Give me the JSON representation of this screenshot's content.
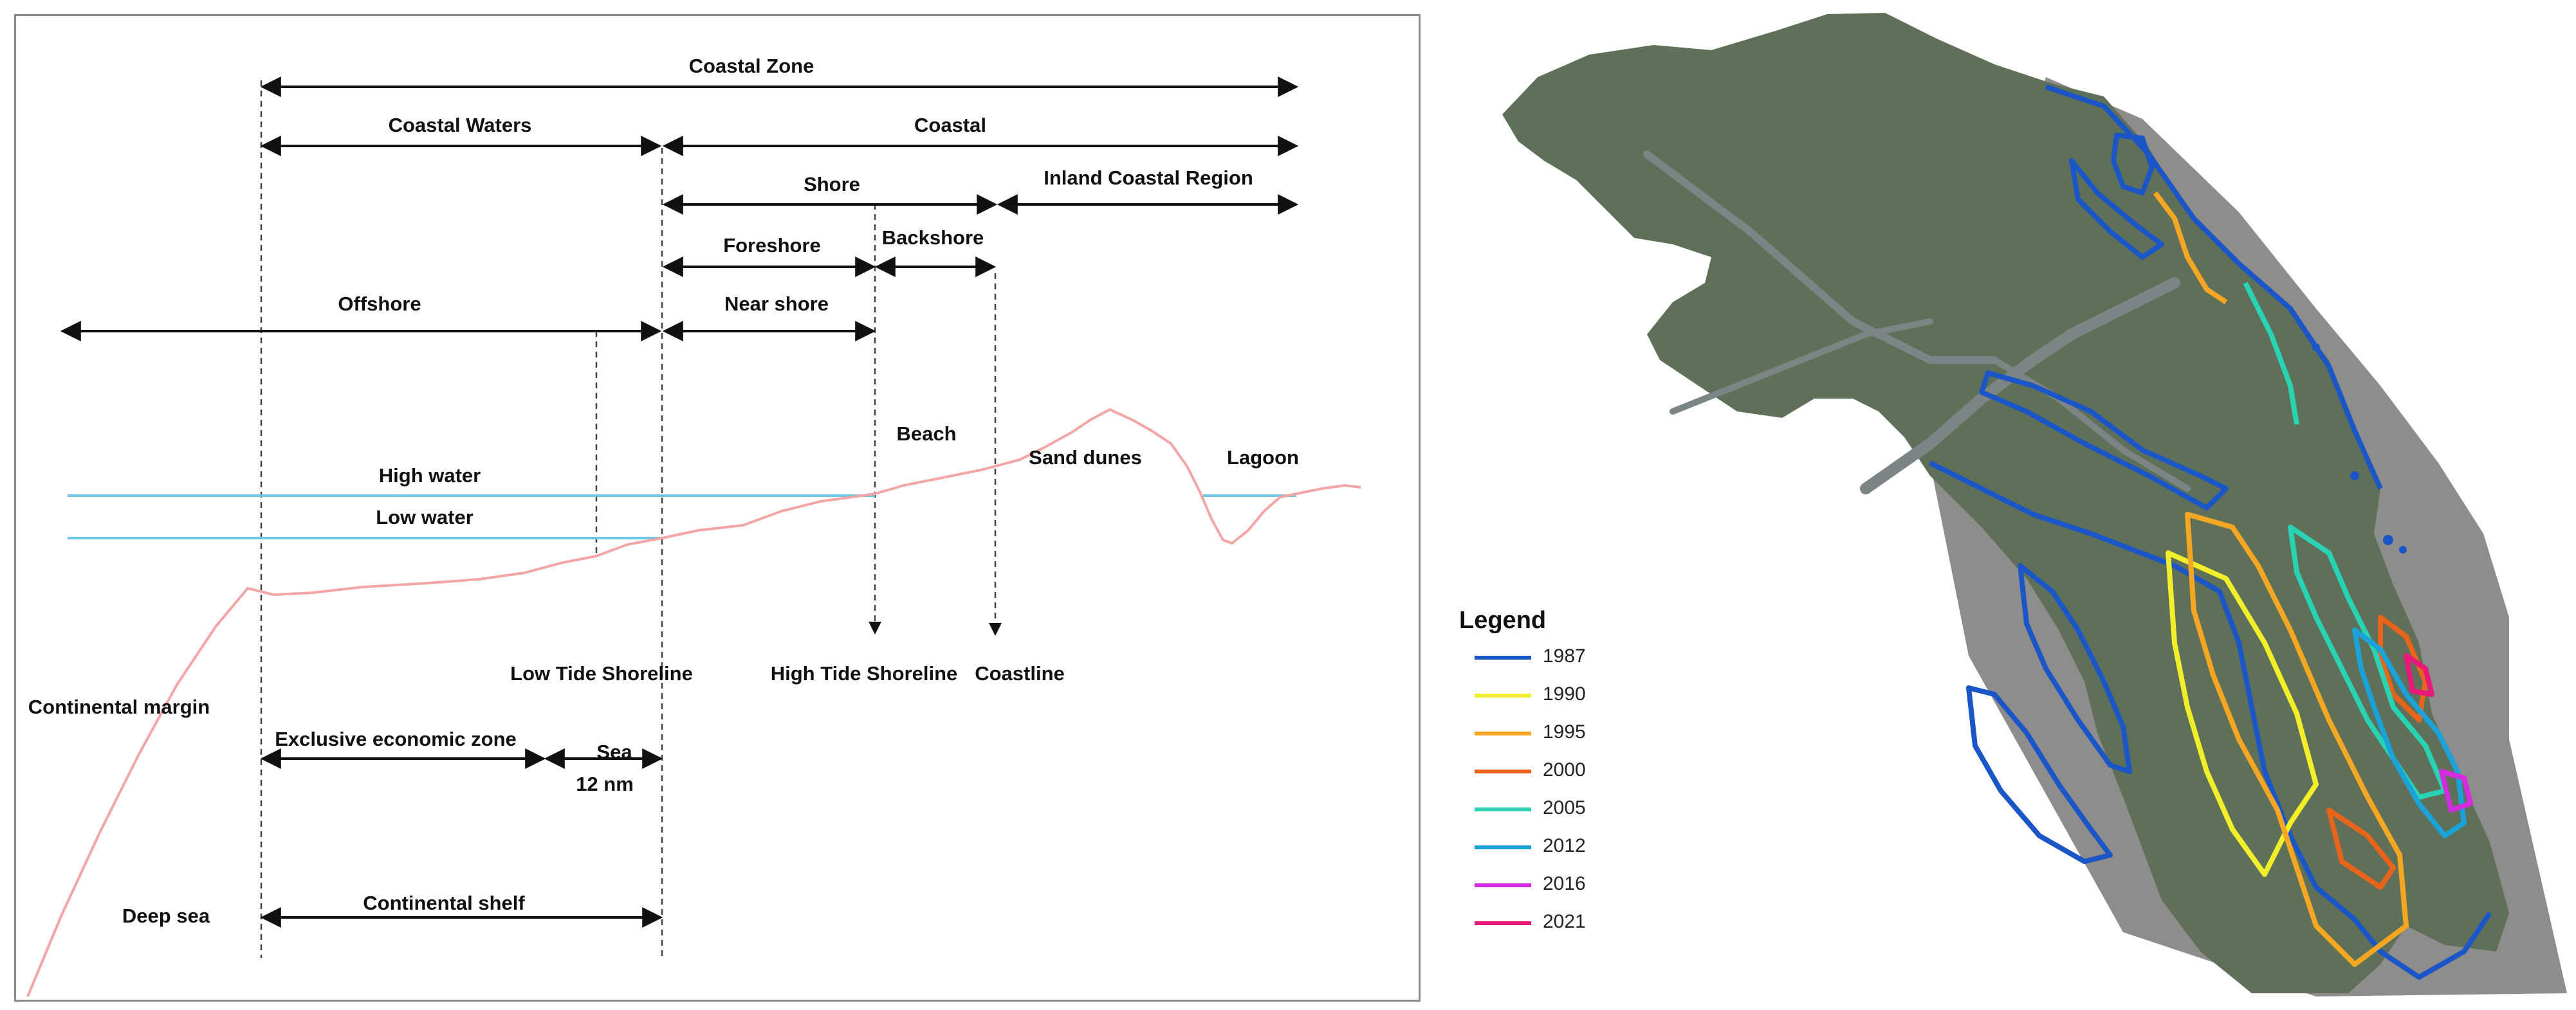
{
  "diagram": {
    "labels": {
      "coastal_zone": "Coastal Zone",
      "coastal_waters": "Coastal Waters",
      "coastal": "Coastal",
      "shore": "Shore",
      "inland_coastal_region": "Inland Coastal Region",
      "foreshore": "Foreshore",
      "backshore": "Backshore",
      "offshore": "Offshore",
      "near_shore": "Near shore",
      "beach": "Beach",
      "sand_dunes": "Sand dunes",
      "lagoon": "Lagoon",
      "high_water": "High water",
      "low_water": "Low water",
      "low_tide_shoreline": "Low Tide Shoreline",
      "high_tide_shoreline": "High Tide Shoreline",
      "coastline": "Coastline",
      "continental_margin": "Continental margin",
      "exclusive_economic_zone": "Exclusive economic zone",
      "sea": "Sea",
      "twelve_nm": "12 nm",
      "deep_sea": "Deep sea",
      "continental_shelf": "Continental shelf"
    },
    "colors": {
      "profile": "#f4a5a5",
      "water_line": "#6cc6e6",
      "arrow": "#111111",
      "dashed": "#444444"
    }
  },
  "map": {
    "legend": {
      "title": "Legend",
      "items": [
        {
          "year": "1987",
          "color": "#1a56c8"
        },
        {
          "year": "1990",
          "color": "#f2ee2a"
        },
        {
          "year": "1995",
          "color": "#f5a623"
        },
        {
          "year": "2000",
          "color": "#e8641b"
        },
        {
          "year": "2005",
          "color": "#27d3b3"
        },
        {
          "year": "2012",
          "color": "#1aa3d8"
        },
        {
          "year": "2016",
          "color": "#d42be0"
        },
        {
          "year": "2021",
          "color": "#e8187a"
        }
      ]
    },
    "colors": {
      "land": "#5f7058",
      "water": "#8f8d8c",
      "river": "#7c8585"
    }
  }
}
